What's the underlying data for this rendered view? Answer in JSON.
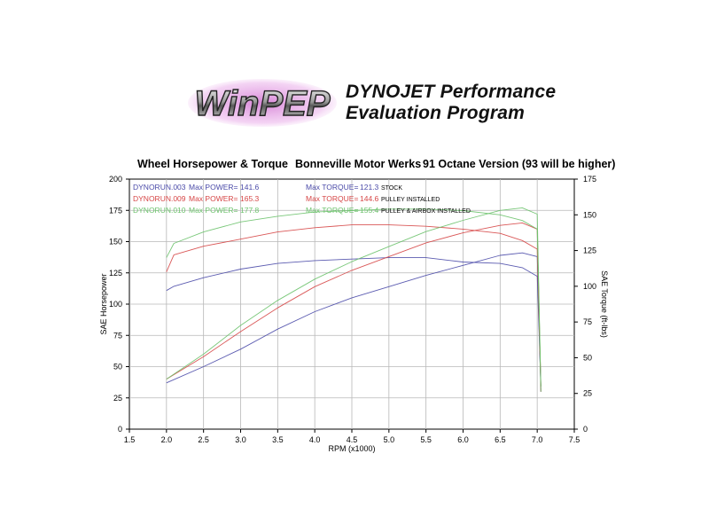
{
  "branding": {
    "logo_text": "WinPEP",
    "line1": "DYNOJET Performance",
    "line2": "Evaluation Program"
  },
  "header": {
    "left": "Wheel Horsepower & Torque",
    "center": "Bonneville Motor Werks",
    "right": "91 Octane Version (93 will be higher)"
  },
  "colors": {
    "stock": "#4a4aa8",
    "pulley": "#d64646",
    "airbox": "#6cc26c"
  },
  "chart_data": {
    "type": "line",
    "xlabel": "RPM (x1000)",
    "ylabel": "SAE Horsepower",
    "y2label": "SAE Torque (ft-lbs)",
    "xlim": [
      1.5,
      7.5
    ],
    "ylim": [
      0,
      200
    ],
    "y2lim": [
      0,
      175
    ],
    "xticks": [
      "1.5",
      "2.0",
      "2.5",
      "3.0",
      "3.5",
      "4.0",
      "4.5",
      "5.0",
      "5.5",
      "6.0",
      "6.5",
      "7.0",
      "7.5"
    ],
    "yticks": [
      "0",
      "25",
      "50",
      "75",
      "100",
      "125",
      "150",
      "175",
      "200"
    ],
    "y2ticks": [
      "0",
      "25",
      "50",
      "75",
      "100",
      "125",
      "150",
      "175"
    ],
    "grid": true,
    "legend": [
      {
        "run": "DYNORUN.003",
        "power_label": "Max POWER=",
        "power": "141.6",
        "torque_label": "Max TORQUE=",
        "torque": "121.3",
        "note": "STOCK",
        "color": "#4a4aa8"
      },
      {
        "run": "DYNORUN.009",
        "power_label": "Max POWER=",
        "power": "165.3",
        "torque_label": "Max TORQUE=",
        "torque": "144.6",
        "note": "PULLEY INSTALLED",
        "color": "#d64646"
      },
      {
        "run": "DYNORUN.010",
        "power_label": "Max POWER=",
        "power": "177.8",
        "torque_label": "Max TORQUE=",
        "torque": "155.4",
        "note": "PULLEY & AIRBOX INSTALLED",
        "color": "#6cc26c"
      }
    ],
    "series": [
      {
        "name": "DYNORUN.003",
        "kind": "power",
        "axis": "left",
        "color": "#4a4aa8",
        "x": [
          2.0,
          2.5,
          3.0,
          3.5,
          4.0,
          4.5,
          5.0,
          5.5,
          6.0,
          6.5,
          6.8,
          7.0,
          7.05
        ],
        "y": [
          37,
          50,
          64,
          80,
          94,
          105,
          114,
          123,
          131,
          139,
          141,
          138,
          30
        ]
      },
      {
        "name": "DYNORUN.003",
        "kind": "torque",
        "axis": "right",
        "color": "#4a4aa8",
        "x": [
          2.0,
          2.1,
          2.5,
          3.0,
          3.5,
          4.0,
          4.5,
          5.0,
          5.5,
          6.0,
          6.5,
          6.8,
          7.0,
          7.05
        ],
        "y": [
          97,
          100,
          106,
          112,
          116,
          118,
          119,
          120,
          120,
          117,
          116,
          113,
          107,
          30
        ]
      },
      {
        "name": "DYNORUN.009",
        "kind": "power",
        "axis": "left",
        "color": "#d64646",
        "x": [
          2.0,
          2.5,
          3.0,
          3.5,
          4.0,
          4.5,
          5.0,
          5.5,
          6.0,
          6.5,
          6.8,
          7.0,
          7.05
        ],
        "y": [
          40,
          58,
          78,
          97,
          114,
          127,
          138,
          149,
          157,
          163,
          165,
          160,
          30
        ]
      },
      {
        "name": "DYNORUN.009",
        "kind": "torque",
        "axis": "right",
        "color": "#d64646",
        "x": [
          2.0,
          2.1,
          2.5,
          3.0,
          3.5,
          4.0,
          4.5,
          5.0,
          5.5,
          6.0,
          6.5,
          6.8,
          7.0,
          7.05
        ],
        "y": [
          110,
          122,
          128,
          133,
          138,
          141,
          143,
          143,
          142,
          140,
          137,
          132,
          126,
          30
        ]
      },
      {
        "name": "DYNORUN.010",
        "kind": "power",
        "axis": "left",
        "color": "#6cc26c",
        "x": [
          2.0,
          2.5,
          3.0,
          3.5,
          4.0,
          4.5,
          5.0,
          5.5,
          6.0,
          6.5,
          6.8,
          7.0,
          7.05
        ],
        "y": [
          40,
          60,
          83,
          103,
          120,
          134,
          146,
          158,
          167,
          175,
          177,
          172,
          30
        ]
      },
      {
        "name": "DYNORUN.010",
        "kind": "torque",
        "axis": "right",
        "color": "#6cc26c",
        "x": [
          2.0,
          2.1,
          2.5,
          3.0,
          3.5,
          4.0,
          4.5,
          5.0,
          5.5,
          6.0,
          6.5,
          6.8,
          7.0,
          7.05
        ],
        "y": [
          120,
          130,
          138,
          145,
          149,
          152,
          153,
          154,
          154,
          153,
          150,
          146,
          140,
          30
        ]
      }
    ]
  }
}
